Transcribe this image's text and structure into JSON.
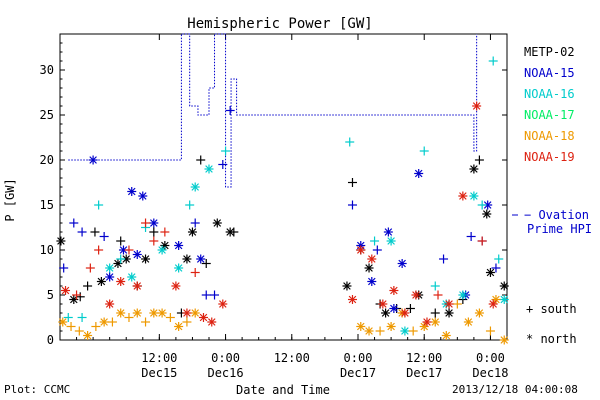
{
  "chart_data": {
    "type": "scatter",
    "title": "Hemispheric Power [GW]",
    "ylabel": "P [GW]",
    "xlabel": "Date and Time",
    "ylim": [
      0,
      34
    ],
    "xlim": [
      "2013-12-14 18:00",
      "2013-12-18 03:00"
    ],
    "y_ticks": [
      0,
      5,
      10,
      15,
      20,
      25,
      30
    ],
    "x_tick_labels": [
      {
        "t": "2013-12-15 12:00",
        "time": "12:00",
        "date": "Dec15"
      },
      {
        "t": "2013-12-16 00:00",
        "time": "0:00",
        "date": "Dec16"
      },
      {
        "t": "2013-12-16 12:00",
        "time": "12:00",
        "date": ""
      },
      {
        "t": "2013-12-17 00:00",
        "time": "0:00",
        "date": "Dec17"
      },
      {
        "t": "2013-12-17 12:00",
        "time": "12:00",
        "date": "Dec17"
      },
      {
        "t": "2013-12-18 00:00",
        "time": "0:00",
        "date": "Dec18"
      }
    ],
    "series": [
      {
        "name": "METP-02",
        "color": "#000000",
        "points": [
          [
            "2013-12-14 18:10",
            11,
            "north"
          ],
          [
            "2013-12-14 20:30",
            4.5,
            "north"
          ],
          [
            "2013-12-14 21:40",
            4.8,
            "south"
          ],
          [
            "2013-12-14 23:00",
            6,
            "south"
          ],
          [
            "2013-12-15 00:20",
            12,
            "south"
          ],
          [
            "2013-12-15 01:30",
            6.5,
            "north"
          ],
          [
            "2013-12-15 04:30",
            8.5,
            "north"
          ],
          [
            "2013-12-15 05:00",
            11,
            "south"
          ],
          [
            "2013-12-15 06:00",
            9,
            "north"
          ],
          [
            "2013-12-15 08:00",
            6,
            "south"
          ],
          [
            "2013-12-15 09:30",
            9,
            "north"
          ],
          [
            "2013-12-15 11:00",
            12,
            "south"
          ],
          [
            "2013-12-15 13:00",
            10.5,
            "north"
          ],
          [
            "2013-12-15 16:00",
            3,
            "south"
          ],
          [
            "2013-12-15 17:00",
            9,
            "north"
          ],
          [
            "2013-12-15 18:00",
            12,
            "north"
          ],
          [
            "2013-12-15 19:30",
            20,
            "south"
          ],
          [
            "2013-12-15 20:30",
            8.5,
            "south"
          ],
          [
            "2013-12-15 22:30",
            13,
            "north"
          ],
          [
            "2013-12-16 00:50",
            12,
            "north"
          ],
          [
            "2013-12-16 01:30",
            12,
            "south"
          ],
          [
            "2013-12-16 22:00",
            6,
            "north"
          ],
          [
            "2013-12-16 23:00",
            17.5,
            "south"
          ],
          [
            "2013-12-17 00:30",
            10,
            "south"
          ],
          [
            "2013-12-17 02:00",
            8,
            "north"
          ],
          [
            "2013-12-17 04:00",
            4,
            "south"
          ],
          [
            "2013-12-17 05:00",
            3,
            "north"
          ],
          [
            "2013-12-17 07:00",
            3.5,
            "south"
          ],
          [
            "2013-12-17 09:30",
            3.5,
            "south"
          ],
          [
            "2013-12-17 11:00",
            5,
            "north"
          ],
          [
            "2013-12-17 14:00",
            3,
            "south"
          ],
          [
            "2013-12-17 16:30",
            3,
            "north"
          ],
          [
            "2013-12-17 19:00",
            4.5,
            "south"
          ],
          [
            "2013-12-17 21:00",
            19,
            "north"
          ],
          [
            "2013-12-17 22:00",
            20,
            "south"
          ],
          [
            "2013-12-17 23:20",
            14,
            "north"
          ],
          [
            "2013-12-18 00:00",
            7.5,
            "north"
          ],
          [
            "2013-12-18 02:30",
            6,
            "north"
          ]
        ]
      },
      {
        "name": "NOAA-15",
        "color": "#0000cc",
        "points": [
          [
            "2013-12-14 18:40",
            8,
            "south"
          ],
          [
            "2013-12-14 20:30",
            13,
            "south"
          ],
          [
            "2013-12-14 22:00",
            12,
            "south"
          ],
          [
            "2013-12-15 00:00",
            20,
            "north"
          ],
          [
            "2013-12-15 02:00",
            11.5,
            "south"
          ],
          [
            "2013-12-15 03:00",
            7,
            "north"
          ],
          [
            "2013-12-15 05:30",
            10,
            "north"
          ],
          [
            "2013-12-15 07:00",
            16.5,
            "north"
          ],
          [
            "2013-12-15 08:00",
            9.5,
            "north"
          ],
          [
            "2013-12-15 09:00",
            16,
            "north"
          ],
          [
            "2013-12-15 11:00",
            13,
            "north"
          ],
          [
            "2013-12-15 15:30",
            10.5,
            "north"
          ],
          [
            "2013-12-15 18:30",
            13,
            "south"
          ],
          [
            "2013-12-15 19:30",
            9,
            "north"
          ],
          [
            "2013-12-15 20:30",
            5,
            "south"
          ],
          [
            "2013-12-15 22:00",
            5,
            "south"
          ],
          [
            "2013-12-15 23:30",
            19.5,
            "south"
          ],
          [
            "2013-12-16 23:00",
            15,
            "south"
          ],
          [
            "2013-12-17 00:30",
            10.5,
            "north"
          ],
          [
            "2013-12-17 02:30",
            6.5,
            "north"
          ],
          [
            "2013-12-17 03:30",
            10,
            "south"
          ],
          [
            "2013-12-17 05:30",
            12,
            "north"
          ],
          [
            "2013-12-17 06:30",
            3.5,
            "north"
          ],
          [
            "2013-12-17 08:00",
            8.5,
            "north"
          ],
          [
            "2013-12-17 11:00",
            18.5,
            "north"
          ],
          [
            "2013-12-17 15:30",
            9,
            "south"
          ],
          [
            "2013-12-17 19:30",
            5,
            "north"
          ],
          [
            "2013-12-17 20:30",
            11.5,
            "south"
          ],
          [
            "2013-12-17 22:30",
            11,
            "south"
          ],
          [
            "2013-12-17 23:30",
            15,
            "north"
          ],
          [
            "2013-12-18 01:00",
            8,
            "south"
          ],
          [
            "2013-12-16 00:50",
            25.5,
            "south"
          ]
        ]
      },
      {
        "name": "NOAA-16",
        "color": "#00cccc",
        "points": [
          [
            "2013-12-14 19:30",
            2.5,
            "south"
          ],
          [
            "2013-12-14 22:00",
            2.5,
            "south"
          ],
          [
            "2013-12-15 01:00",
            15,
            "south"
          ],
          [
            "2013-12-15 03:00",
            8,
            "north"
          ],
          [
            "2013-12-15 05:00",
            9,
            "south"
          ],
          [
            "2013-12-15 07:00",
            7,
            "north"
          ],
          [
            "2013-12-15 09:30",
            12.5,
            "south"
          ],
          [
            "2013-12-15 12:30",
            10,
            "north"
          ],
          [
            "2013-12-15 15:30",
            8,
            "north"
          ],
          [
            "2013-12-15 17:30",
            15,
            "south"
          ],
          [
            "2013-12-15 18:30",
            17,
            "north"
          ],
          [
            "2013-12-15 21:00",
            19,
            "north"
          ],
          [
            "2013-12-16 00:00",
            21,
            "south"
          ],
          [
            "2013-12-16 22:30",
            22,
            "south"
          ],
          [
            "2013-12-17 03:00",
            11,
            "south"
          ],
          [
            "2013-12-17 06:00",
            11,
            "north"
          ],
          [
            "2013-12-17 08:30",
            1,
            "north"
          ],
          [
            "2013-12-17 12:00",
            21,
            "south"
          ],
          [
            "2013-12-17 14:00",
            6,
            "south"
          ],
          [
            "2013-12-17 16:00",
            4,
            "north"
          ],
          [
            "2013-12-17 19:00",
            5,
            "north"
          ],
          [
            "2013-12-17 21:00",
            16,
            "north"
          ],
          [
            "2013-12-17 22:30",
            15,
            "south"
          ],
          [
            "2013-12-18 00:30",
            31,
            "south"
          ],
          [
            "2013-12-18 01:30",
            9,
            "south"
          ],
          [
            "2013-12-18 02:30",
            4.5,
            "north"
          ]
        ]
      },
      {
        "name": "NOAA-17",
        "color": "#00ee66",
        "points": []
      },
      {
        "name": "NOAA-18",
        "color": "#ee9900",
        "points": [
          [
            "2013-12-14 18:30",
            2,
            "north"
          ],
          [
            "2013-12-14 20:00",
            1.5,
            "south"
          ],
          [
            "2013-12-14 21:30",
            1,
            "south"
          ],
          [
            "2013-12-14 23:00",
            0.5,
            "north"
          ],
          [
            "2013-12-15 00:30",
            1.5,
            "south"
          ],
          [
            "2013-12-15 02:00",
            2,
            "north"
          ],
          [
            "2013-12-15 03:30",
            2,
            "south"
          ],
          [
            "2013-12-15 05:00",
            3,
            "north"
          ],
          [
            "2013-12-15 06:30",
            2.5,
            "south"
          ],
          [
            "2013-12-15 08:00",
            3,
            "north"
          ],
          [
            "2013-12-15 09:30",
            2,
            "south"
          ],
          [
            "2013-12-15 11:00",
            3,
            "north"
          ],
          [
            "2013-12-15 12:30",
            3,
            "north"
          ],
          [
            "2013-12-15 14:00",
            2.5,
            "south"
          ],
          [
            "2013-12-15 15:30",
            1.5,
            "north"
          ],
          [
            "2013-12-15 17:00",
            2,
            "south"
          ],
          [
            "2013-12-15 18:30",
            3,
            "north"
          ],
          [
            "2013-12-17 00:30",
            1.5,
            "north"
          ],
          [
            "2013-12-17 02:00",
            1,
            "north"
          ],
          [
            "2013-12-17 04:00",
            1,
            "south"
          ],
          [
            "2013-12-17 06:00",
            1.5,
            "north"
          ],
          [
            "2013-12-17 08:00",
            3,
            "north"
          ],
          [
            "2013-12-17 10:00",
            1,
            "south"
          ],
          [
            "2013-12-17 12:00",
            1.5,
            "north"
          ],
          [
            "2013-12-17 14:00",
            2,
            "north"
          ],
          [
            "2013-12-17 16:00",
            0.5,
            "north"
          ],
          [
            "2013-12-17 18:00",
            4,
            "south"
          ],
          [
            "2013-12-17 20:00",
            2,
            "north"
          ],
          [
            "2013-12-17 22:00",
            3,
            "north"
          ],
          [
            "2013-12-18 00:00",
            1,
            "south"
          ],
          [
            "2013-12-18 01:00",
            4.5,
            "north"
          ],
          [
            "2013-12-18 02:30",
            0,
            "north"
          ]
        ]
      },
      {
        "name": "NOAA-19",
        "color": "#dd2211",
        "points": [
          [
            "2013-12-14 19:00",
            5.5,
            "north"
          ],
          [
            "2013-12-14 21:00",
            5,
            "south"
          ],
          [
            "2013-12-14 23:30",
            8,
            "south"
          ],
          [
            "2013-12-15 01:00",
            10,
            "south"
          ],
          [
            "2013-12-15 03:00",
            4,
            "north"
          ],
          [
            "2013-12-15 05:00",
            6.5,
            "north"
          ],
          [
            "2013-12-15 06:30",
            10,
            "south"
          ],
          [
            "2013-12-15 08:00",
            6,
            "north"
          ],
          [
            "2013-12-15 09:30",
            13,
            "south"
          ],
          [
            "2013-12-15 11:00",
            11,
            "south"
          ],
          [
            "2013-12-15 13:00",
            12,
            "south"
          ],
          [
            "2013-12-15 15:00",
            6,
            "north"
          ],
          [
            "2013-12-15 17:00",
            3,
            "north"
          ],
          [
            "2013-12-15 18:30",
            7.5,
            "south"
          ],
          [
            "2013-12-15 20:00",
            2.5,
            "north"
          ],
          [
            "2013-12-15 21:30",
            2,
            "north"
          ],
          [
            "2013-12-15 23:30",
            4,
            "north"
          ],
          [
            "2013-12-16 23:00",
            4.5,
            "north"
          ],
          [
            "2013-12-17 00:30",
            10,
            "north"
          ],
          [
            "2013-12-17 02:30",
            9,
            "north"
          ],
          [
            "2013-12-17 04:30",
            4,
            "north"
          ],
          [
            "2013-12-17 06:30",
            5.5,
            "north"
          ],
          [
            "2013-12-17 08:30",
            3,
            "north"
          ],
          [
            "2013-12-17 10:30",
            5,
            "north"
          ],
          [
            "2013-12-17 12:30",
            2,
            "north"
          ],
          [
            "2013-12-17 14:30",
            5,
            "south"
          ],
          [
            "2013-12-17 16:30",
            4,
            "north"
          ],
          [
            "2013-12-17 19:00",
            16,
            "north"
          ],
          [
            "2013-12-17 21:30",
            26,
            "north"
          ],
          [
            "2013-12-17 22:30",
            11,
            "south"
          ],
          [
            "2013-12-18 00:30",
            4,
            "north"
          ]
        ]
      }
    ],
    "ovation": {
      "legend": "Ovation Prime HPI",
      "color": "#0000cc",
      "points": [
        [
          "2013-12-14 19:30",
          20
        ],
        [
          "2013-12-15 16:00",
          34
        ],
        [
          "2013-12-15 17:30",
          26
        ],
        [
          "2013-12-15 19:00",
          25
        ],
        [
          "2013-12-15 21:00",
          28
        ],
        [
          "2013-12-15 22:00",
          34
        ],
        [
          "2013-12-16 00:00",
          17
        ],
        [
          "2013-12-16 01:00",
          29
        ],
        [
          "2013-12-16 02:00",
          25
        ],
        [
          "2013-12-16 06:00",
          25
        ],
        [
          "2013-12-17 21:00",
          21
        ],
        [
          "2013-12-17 21:30",
          34
        ]
      ]
    },
    "markers": {
      "south": "+ south",
      "north": "* north"
    }
  },
  "footer": {
    "plot_label": "Plot: CCMC",
    "timestamp": "2013/12/18 04:00:08"
  }
}
